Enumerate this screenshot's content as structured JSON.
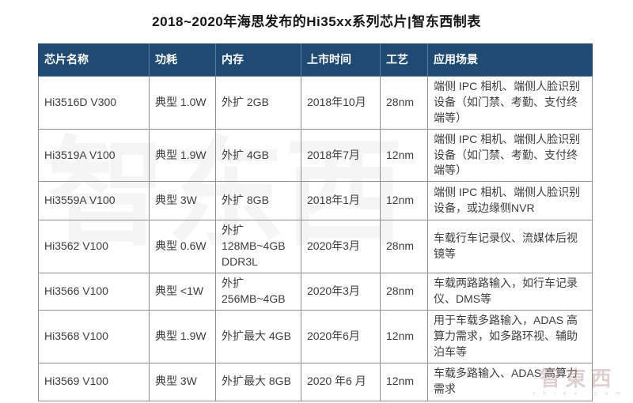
{
  "title": "2018~2020年海思发布的Hi35xx系列芯片|智东西制表",
  "chart_data": {
    "type": "table",
    "title": "2018~2020年海思发布的Hi35xx系列芯片|智东西制表",
    "columns": [
      "芯片名称",
      "功耗",
      "内存",
      "上市时间",
      "工艺",
      "应用场景"
    ],
    "rows": [
      [
        "Hi3516D V300",
        "典型 1.0W",
        "外扩 2GB",
        "2018年10月",
        "28nm",
        "端侧 IPC 相机、端侧人脸识别设备（如门禁、考勤、支付终端等）"
      ],
      [
        "Hi3519A V100",
        "典型 1.9W",
        "外扩 4GB",
        "2018年7月",
        "12nm",
        "端侧 IPC 相机、端侧人脸识别设备（如门禁、考勤、支付终端等）"
      ],
      [
        "Hi3559A V100",
        "典型 3W",
        "外扩 8GB",
        "2018年1月",
        "12nm",
        "端侧 IPC 相机、端侧人脸识别设备，或边缘侧NVR"
      ],
      [
        "Hi3562 V100",
        "典型 0.6W",
        "外扩 128MB~4GB DDR3L",
        "2020年3月",
        "28nm",
        "车载行车记录仪、流媒体后视镜等"
      ],
      [
        "Hi3566 V100",
        "典型 <1W",
        "外扩 256MB~4GB",
        "2020年3月",
        "28nm",
        "车载两路路输入，如行车记录仪、DMS等"
      ],
      [
        "Hi3568 V100",
        "典型 1.9W",
        "外扩最大 4GB",
        "2020年6月",
        "12nm",
        "用于车载多路输入，ADAS 高算力需求，如多路环视、辅助泊车等"
      ],
      [
        "Hi3569 V100",
        "典型 3W",
        "外扩最大 8GB",
        "2020 年6 月",
        "12nm",
        "车载多路输入、ADAS 高算力需求"
      ]
    ]
  },
  "watermarks": {
    "center": "智东西",
    "bottom_right": "智東西",
    "bottom_right_sub": "z h i d x . c o m"
  },
  "colors": {
    "header_bg": "#1F4A73",
    "header_text": "#FFFFFF",
    "border": "#8E8E8E",
    "cell_text": "#3D3D3D",
    "title_text": "#151515"
  }
}
